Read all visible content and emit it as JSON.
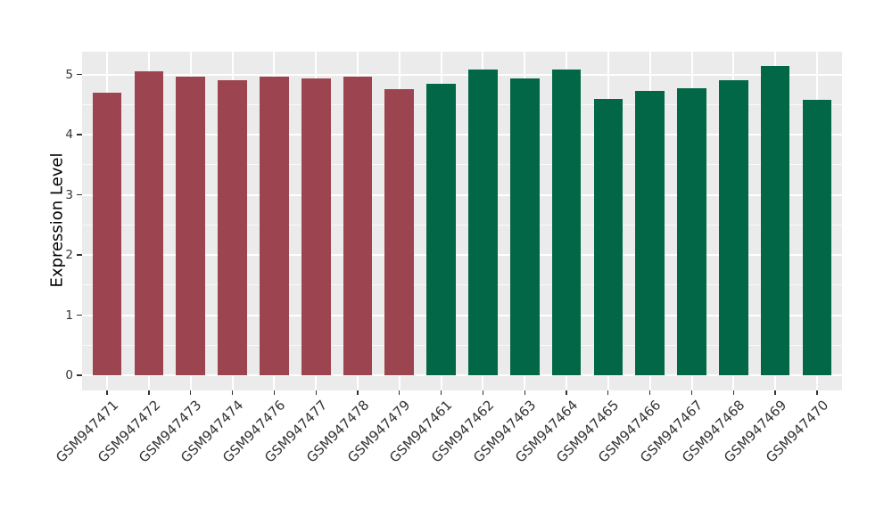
{
  "chart_data": {
    "type": "bar",
    "title": "",
    "xlabel": "",
    "ylabel": "Expression Level",
    "categories": [
      "GSM947471",
      "GSM947472",
      "GSM947473",
      "GSM947474",
      "GSM947476",
      "GSM947477",
      "GSM947478",
      "GSM947479",
      "GSM947461",
      "GSM947462",
      "GSM947463",
      "GSM947464",
      "GSM947465",
      "GSM947466",
      "GSM947467",
      "GSM947468",
      "GSM947469",
      "GSM947470"
    ],
    "values": [
      4.7,
      5.05,
      4.96,
      4.9,
      4.97,
      4.94,
      4.96,
      4.76,
      4.84,
      5.09,
      4.94,
      5.08,
      4.6,
      4.73,
      4.77,
      4.9,
      5.15,
      4.58
    ],
    "bar_colors": [
      "#9C4450",
      "#9C4450",
      "#9C4450",
      "#9C4450",
      "#9C4450",
      "#9C4450",
      "#9C4450",
      "#9C4450",
      "#016747",
      "#016747",
      "#016747",
      "#016747",
      "#016747",
      "#016747",
      "#016747",
      "#016747",
      "#016747",
      "#016747"
    ],
    "palette": {
      "group1_red": "#9C4450",
      "group2_green": "#016747"
    },
    "ylim": [
      -0.25,
      5.38
    ],
    "yticks": [
      0,
      1,
      2,
      3,
      4,
      5
    ],
    "ytick_labels": [
      "0",
      "1",
      "2",
      "3",
      "4",
      "5"
    ],
    "yticks_minor": [
      0.5,
      1.5,
      2.5,
      3.5,
      4.5
    ],
    "x_tick_rotation_deg": 45,
    "bar_width_fraction": 0.7,
    "grid": "on",
    "legend_position": "none",
    "style": {
      "figure_background": "#FFFFFF",
      "panel_background": "#EBEBEB",
      "grid_color": "#FFFFFF",
      "axis_text_color": "#333333",
      "axis_title_color": "#000000",
      "tick_color": "#333333"
    }
  }
}
